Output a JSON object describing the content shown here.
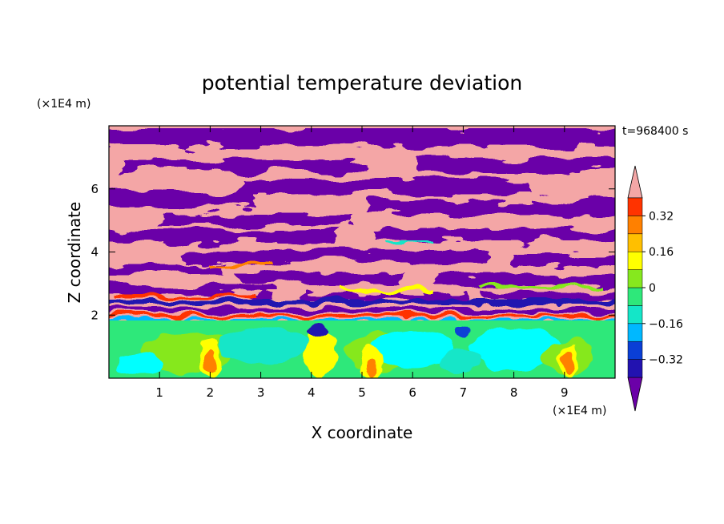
{
  "chart_data": {
    "type": "heatmap",
    "title": "potential temperature deviation",
    "xlabel": "X coordinate",
    "ylabel": "Z coordinate",
    "x_unit": "(×1E4 m)",
    "y_unit": "(×1E4 m)",
    "time_label": "t=968400 s",
    "xlim": [
      0,
      10
    ],
    "ylim": [
      0,
      8
    ],
    "x_ticks": [
      1,
      2,
      3,
      4,
      5,
      6,
      7,
      8,
      9
    ],
    "y_ticks": [
      2,
      4,
      6
    ],
    "grid": false,
    "colorbar": {
      "placement": "right",
      "levels": [
        -0.4,
        -0.32,
        -0.24,
        -0.16,
        -0.08,
        0,
        0.08,
        0.16,
        0.24,
        0.32,
        0.4
      ],
      "colors": [
        "#6b00a8",
        "#2212b0",
        "#0a3fd6",
        "#00b8ff",
        "#14e6c8",
        "#2ee87a",
        "#86e81e",
        "#ffff00",
        "#ffbf00",
        "#ff8000",
        "#ff3300",
        "#f4a6a6"
      ],
      "tick_values": [
        0.32,
        0.16,
        0,
        -0.16,
        -0.32
      ],
      "tick_labels": [
        "0.32",
        "0.16",
        "0",
        "−0.16",
        "−0.32"
      ],
      "extend": "both"
    },
    "field_description_rows": [
      {
        "z_range": [
          0,
          1.8
        ],
        "dominant_range": [
          -0.16,
          0.08
        ]
      },
      {
        "z_range": [
          1.8,
          8
        ],
        "dominant_range": [
          -0.4,
          0.4
        ]
      }
    ]
  }
}
